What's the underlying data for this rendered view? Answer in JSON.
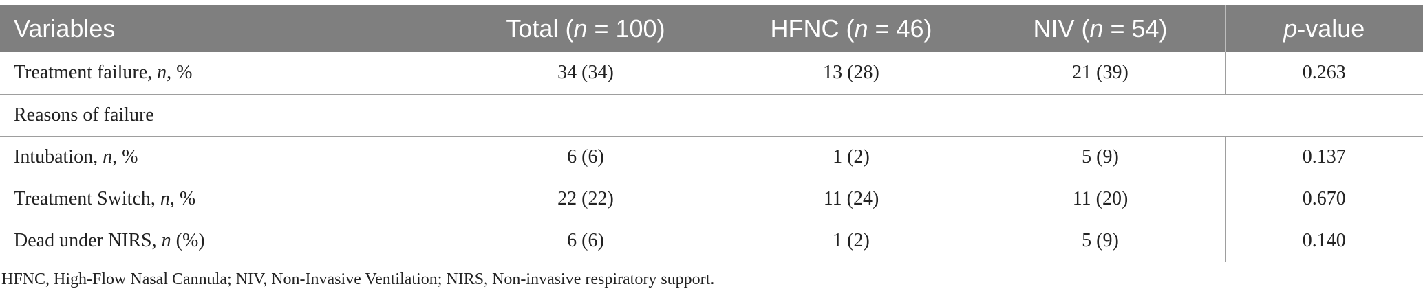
{
  "table": {
    "headers": [
      {
        "pre": "Variables",
        "ital": "",
        "post": ""
      },
      {
        "pre": "Total (",
        "ital": "n",
        "post": " = 100)"
      },
      {
        "pre": "HFNC (",
        "ital": "n",
        "post": " = 46)"
      },
      {
        "pre": "NIV (",
        "ital": "n",
        "post": " = 54)"
      },
      {
        "pre": "",
        "ital": "p",
        "post": "-value"
      }
    ],
    "rows": [
      {
        "pre": "Treatment failure, ",
        "ital": "n",
        "post": ", %",
        "total": "34 (34)",
        "hfnc": "13 (28)",
        "niv": "21 (39)",
        "p": "0.263"
      },
      {
        "section": "Reasons of failure"
      },
      {
        "pre": "Intubation, ",
        "ital": "n",
        "post": ", %",
        "total": "6 (6)",
        "hfnc": "1 (2)",
        "niv": "5 (9)",
        "p": "0.137"
      },
      {
        "pre": "Treatment Switch, ",
        "ital": "n",
        "post": ", %",
        "total": "22 (22)",
        "hfnc": "11 (24)",
        "niv": "11 (20)",
        "p": "0.670"
      },
      {
        "pre": "Dead under NIRS, ",
        "ital": "n",
        "post": " (%)",
        "total": "6 (6)",
        "hfnc": "1 (2)",
        "niv": "5 (9)",
        "p": "0.140"
      }
    ]
  },
  "footnote": "HFNC, High-Flow Nasal Cannula; NIV, Non-Invasive Ventilation; NIRS, Non-invasive respiratory support."
}
